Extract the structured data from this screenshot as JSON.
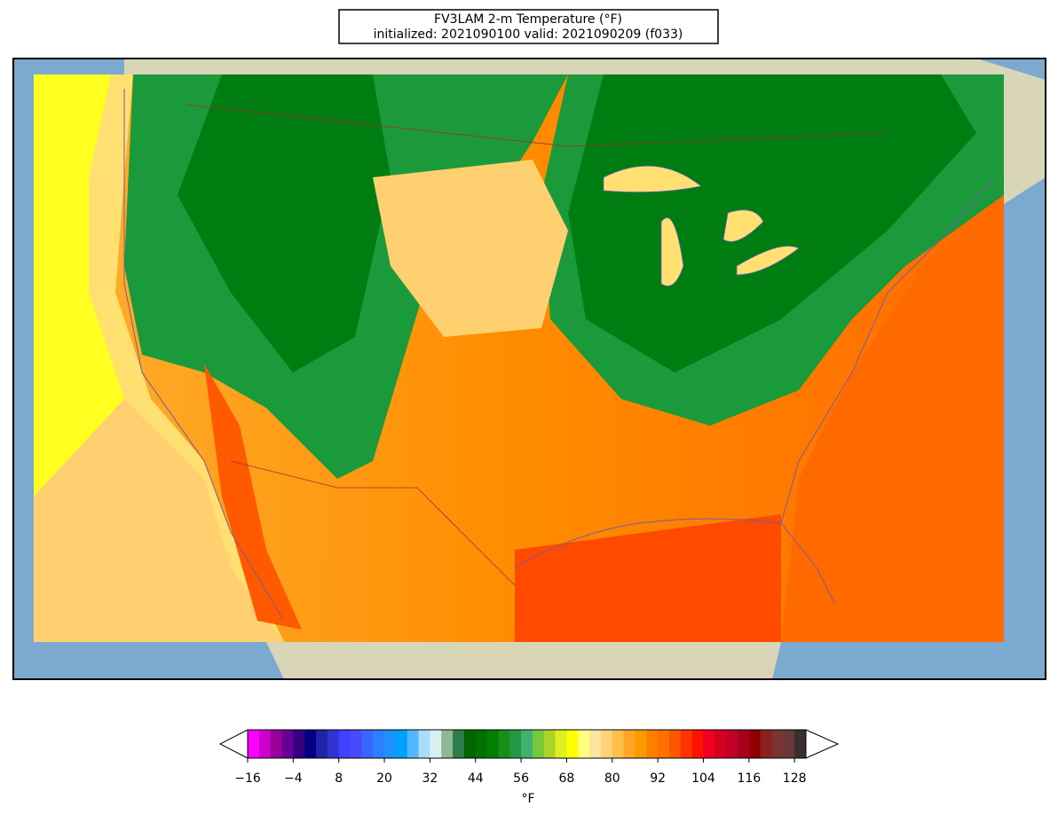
{
  "title": {
    "lines": [
      "FV3LAM 2-m Temperature (°F)",
      "initialized: 2021090100 valid: 2021090209 (f033)"
    ]
  },
  "colorbar": {
    "label": "°F",
    "xlim": [
      -16,
      131
    ],
    "xticks": [
      {
        "value": -16,
        "label": "−16"
      },
      {
        "value": -4,
        "label": "−4"
      },
      8,
      20,
      32,
      44,
      56,
      68,
      80,
      92,
      104,
      116,
      128
    ],
    "levels": [
      -16,
      -13,
      -10,
      -7,
      -4,
      -1,
      2,
      5,
      8,
      11,
      14,
      17,
      20,
      23,
      26,
      29,
      32,
      35,
      38,
      41,
      44,
      47,
      50,
      53,
      56,
      59,
      62,
      65,
      68,
      71,
      74,
      77,
      80,
      83,
      86,
      89,
      92,
      95,
      98,
      101,
      104,
      107,
      110,
      113,
      116,
      119,
      122,
      125,
      128,
      131
    ],
    "colors": [
      "#ff00ff",
      "#cc00cc",
      "#990099",
      "#660099",
      "#330080",
      "#000080",
      "#2222a8",
      "#3333d0",
      "#4040ff",
      "#4848ff",
      "#3a66ff",
      "#2a80ff",
      "#1e90ff",
      "#00a0ff",
      "#50b8ff",
      "#a8dcf8",
      "#d8f0f0",
      "#8fb890",
      "#2e7d4e",
      "#006400",
      "#007000",
      "#008000",
      "#1a8c1a",
      "#229944",
      "#3cb371",
      "#77c83a",
      "#aad42a",
      "#e0ee22",
      "#ffff00",
      "#ffff80",
      "#ffe49a",
      "#ffd27a",
      "#ffc04a",
      "#ffa828",
      "#ff9900",
      "#ff8000",
      "#ff7000",
      "#ff5500",
      "#ff3300",
      "#ff1100",
      "#ee0022",
      "#d40020",
      "#c00028",
      "#a8001a",
      "#900000",
      "#882222",
      "#7a3333",
      "#6a3838",
      "#383030",
      "#505050",
      "#707070",
      "#9a9a9a",
      "#c8c8c8",
      "#e0e0e0"
    ],
    "extend": "both"
  }
}
